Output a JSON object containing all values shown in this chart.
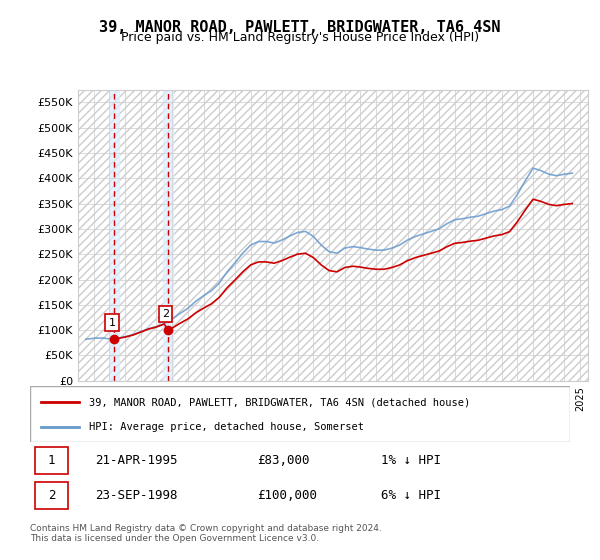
{
  "title": "39, MANOR ROAD, PAWLETT, BRIDGWATER, TA6 4SN",
  "subtitle": "Price paid vs. HM Land Registry's House Price Index (HPI)",
  "ylabel": "",
  "ylim": [
    0,
    575000
  ],
  "yticks": [
    0,
    50000,
    100000,
    150000,
    200000,
    250000,
    300000,
    350000,
    400000,
    450000,
    500000,
    550000
  ],
  "ytick_labels": [
    "£0",
    "£50K",
    "£100K",
    "£150K",
    "£200K",
    "£250K",
    "£300K",
    "£350K",
    "£400K",
    "£450K",
    "£500K",
    "£550K"
  ],
  "sales": [
    {
      "date": 1995.31,
      "price": 83000,
      "label": "1"
    },
    {
      "date": 1998.73,
      "price": 100000,
      "label": "2"
    }
  ],
  "sale_color": "#cc0000",
  "hpi_color": "#6699cc",
  "hpi_line_color": "#6699cc",
  "background_hatch_color": "#dddddd",
  "vline_color": "#cc0000",
  "highlight_bg_color": "#ddeeff",
  "legend_entries": [
    "39, MANOR ROAD, PAWLETT, BRIDGWATER, TA6 4SN (detached house)",
    "HPI: Average price, detached house, Somerset"
  ],
  "table_rows": [
    {
      "num": "1",
      "date": "21-APR-1995",
      "price": "£83,000",
      "hpi": "1% ↓ HPI"
    },
    {
      "num": "2",
      "date": "23-SEP-1998",
      "price": "£100,000",
      "hpi": "6% ↓ HPI"
    }
  ],
  "footer": "Contains HM Land Registry data © Crown copyright and database right 2024.\nThis data is licensed under the Open Government Licence v3.0.",
  "xlim_start": 1993.0,
  "xlim_end": 2025.5
}
